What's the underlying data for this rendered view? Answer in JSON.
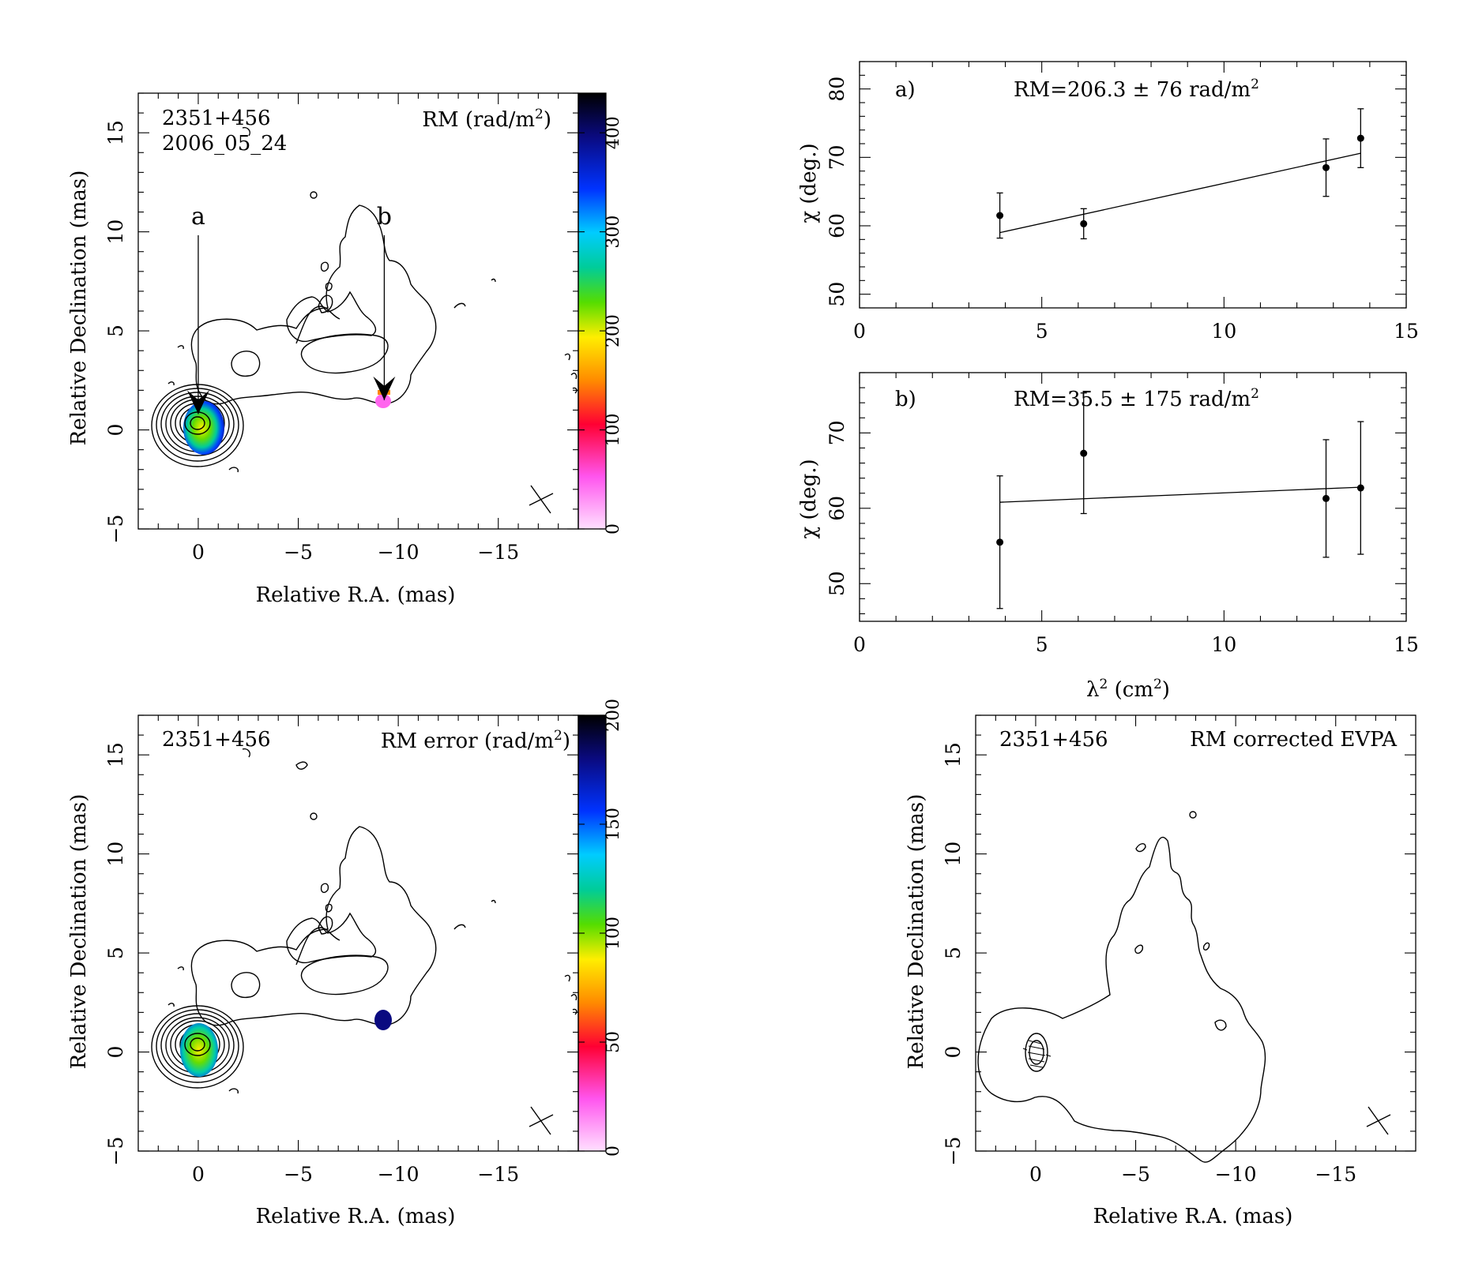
{
  "chart_data": [
    {
      "type": "heatmap",
      "panel": "top-left",
      "source_name": "2351+456",
      "epoch": "2006_05_24",
      "colorbar_title": "RM (rad/m",
      "colorbar_sup": "2",
      "colorbar_title_end": ")",
      "colorbar_range": [
        0,
        440
      ],
      "colorbar_ticks": [
        "0",
        "100",
        "200",
        "300",
        "400"
      ],
      "xlabel": "Relative R.A. (mas)",
      "ylabel": "Relative Declination (mas)",
      "xlim": [
        3,
        -19
      ],
      "ylim": [
        -5,
        17
      ],
      "xticks": [
        "0",
        "−5",
        "−10",
        "−15"
      ],
      "yticks": [
        "−5",
        "0",
        "5",
        "10",
        "15"
      ],
      "markers": [
        {
          "label": "a",
          "x": 0,
          "y": 0.8
        },
        {
          "label": "b",
          "x": -9.3,
          "y": 1.5
        }
      ]
    },
    {
      "type": "scatter",
      "panel": "a",
      "panel_label": "a)",
      "annotation": "RM=206.3 ± 76 rad/m",
      "annotation_sup": "2",
      "ylabel": "χ (deg.)",
      "xlim": [
        0,
        15
      ],
      "ylim": [
        48,
        84
      ],
      "xticks": [
        "0",
        "5",
        "10",
        "15"
      ],
      "yticks": [
        "50",
        "60",
        "70",
        "80"
      ],
      "points": [
        {
          "x": 3.85,
          "y": 61.5,
          "err": 3.3
        },
        {
          "x": 6.15,
          "y": 60.3,
          "err": 2.2
        },
        {
          "x": 12.8,
          "y": 68.5,
          "err": 4.2
        },
        {
          "x": 13.75,
          "y": 72.8,
          "err": 4.3
        }
      ],
      "fit": [
        [
          3.85,
          59.0
        ],
        [
          13.75,
          70.6
        ]
      ]
    },
    {
      "type": "scatter",
      "panel": "b",
      "panel_label": "b)",
      "annotation": "RM=35.5 ± 175 rad/m",
      "annotation_sup": "2",
      "ylabel": "χ (deg.)",
      "xlabel": "λ",
      "xlabel_sup": "2",
      "xlabel_unit": " (cm",
      "xlabel_unit_sup": "2",
      "xlabel_end": ")",
      "xlim": [
        0,
        15
      ],
      "ylim": [
        45,
        78
      ],
      "xticks": [
        "0",
        "5",
        "10",
        "15"
      ],
      "yticks": [
        "50",
        "60",
        "70"
      ],
      "points": [
        {
          "x": 3.85,
          "y": 55.5,
          "err": 8.8
        },
        {
          "x": 6.15,
          "y": 67.3,
          "err": 8.0
        },
        {
          "x": 12.8,
          "y": 61.3,
          "err": 7.8
        },
        {
          "x": 13.75,
          "y": 62.7,
          "err": 8.8
        }
      ],
      "fit": [
        [
          3.85,
          60.8
        ],
        [
          13.75,
          62.8
        ]
      ]
    },
    {
      "type": "heatmap",
      "panel": "bottom-left",
      "source_name": "2351+456",
      "colorbar_title": "RM error (rad/m",
      "colorbar_sup": "2",
      "colorbar_title_end": ")",
      "colorbar_range": [
        0,
        200
      ],
      "colorbar_ticks": [
        "0",
        "50",
        "100",
        "150",
        "200"
      ],
      "xlabel": "Relative R.A. (mas)",
      "ylabel": "Relative Declination (mas)",
      "xlim": [
        3,
        -19
      ],
      "ylim": [
        -5,
        17
      ],
      "xticks": [
        "0",
        "−5",
        "−10",
        "−15"
      ],
      "yticks": [
        "−5",
        "0",
        "5",
        "10",
        "15"
      ]
    },
    {
      "type": "heatmap",
      "panel": "bottom-right",
      "source_name": "2351+456",
      "title": "RM corrected EVPA",
      "xlabel": "Relative R.A. (mas)",
      "ylabel": "Relative Declination (mas)",
      "xlim": [
        3,
        -19
      ],
      "ylim": [
        -5,
        17
      ],
      "xticks": [
        "0",
        "−5",
        "−10",
        "−15"
      ],
      "yticks": [
        "−5",
        "0",
        "5",
        "10",
        "15"
      ]
    }
  ],
  "colors": {
    "rm_scale": [
      "#ffd9ff",
      "#ff66ff",
      "#ff0040",
      "#ff8800",
      "#ffee00",
      "#66dd00",
      "#00cc88",
      "#00ccff",
      "#0033ff",
      "#0a0a80",
      "#000000"
    ]
  }
}
